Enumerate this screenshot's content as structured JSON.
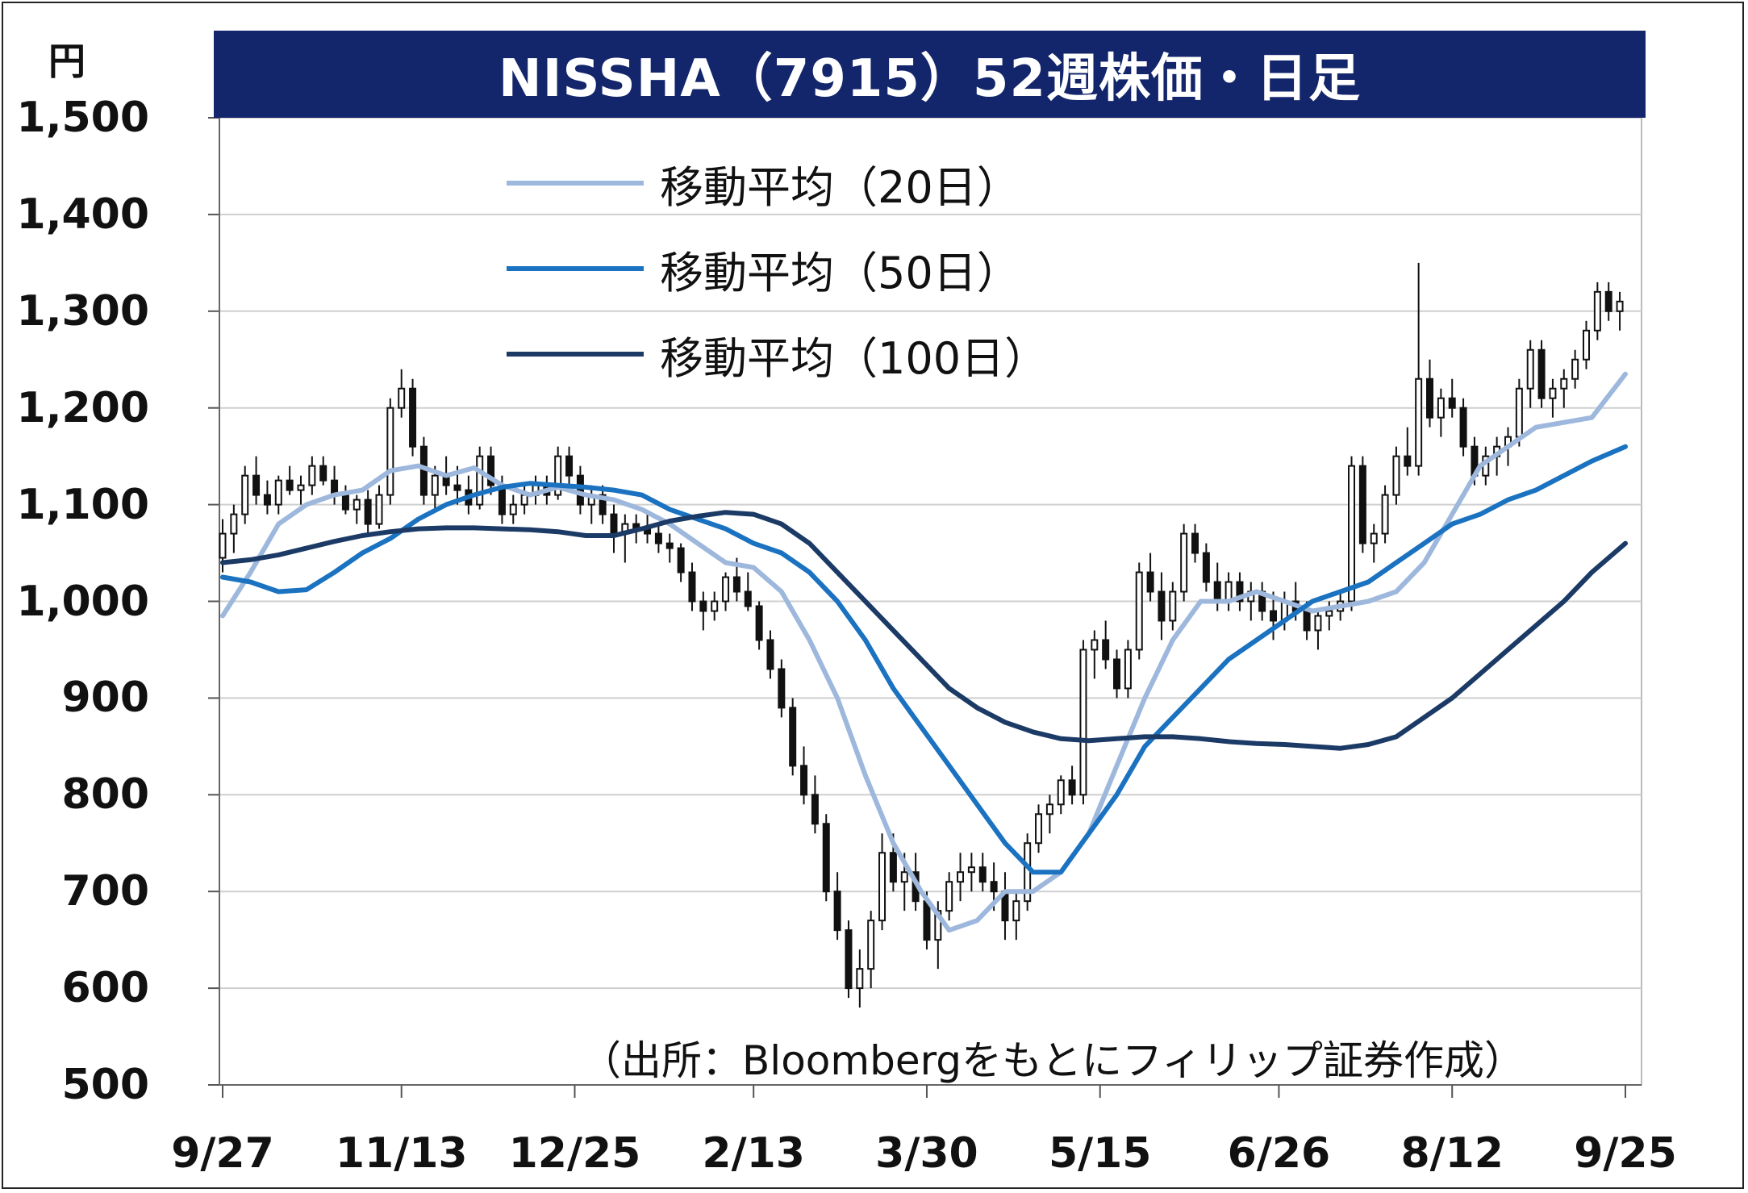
{
  "title": "NISSHA（7915）52週株価・日足",
  "unit_label": "円",
  "source_note": "（出所：Bloombergをもとにフィリップ証券作成）",
  "colors": {
    "title_bg": "#13256b",
    "ma20": "#9db8dc",
    "ma50": "#1a72c0",
    "ma100": "#1b3a66",
    "candle": "#111111",
    "grid": "#cfcfcf"
  },
  "legend": [
    {
      "key": "ma20",
      "label": "移動平均（20日）"
    },
    {
      "key": "ma50",
      "label": "移動平均（50日）"
    },
    {
      "key": "ma100",
      "label": "移動平均（100日）"
    }
  ],
  "chart_data": {
    "type": "candlestick",
    "title": "NISSHA（7915）52週株価・日足",
    "ylabel": "円",
    "ylim": [
      500,
      1500
    ],
    "yticks": [
      500,
      600,
      700,
      800,
      900,
      1000,
      1100,
      1200,
      1300,
      1400,
      1500
    ],
    "ytick_labels": [
      "500",
      "600",
      "700",
      "800",
      "900",
      "1,000",
      "1,100",
      "1,200",
      "1,300",
      "1,400",
      "1,500"
    ],
    "xticks": [
      {
        "label": "9/27",
        "index": 0
      },
      {
        "label": "11/13",
        "index": 32
      },
      {
        "label": "12/25",
        "index": 63
      },
      {
        "label": "2/13",
        "index": 95
      },
      {
        "label": "3/30",
        "index": 126
      },
      {
        "label": "5/15",
        "index": 157
      },
      {
        "label": "6/26",
        "index": 189
      },
      {
        "label": "8/12",
        "index": 220
      },
      {
        "label": "9/25",
        "index": 251
      }
    ],
    "x_count": 252,
    "grid": true,
    "legend_position": "top-left",
    "candles": [
      [
        0,
        1045,
        1085,
        1030,
        1070
      ],
      [
        2,
        1070,
        1100,
        1050,
        1090
      ],
      [
        4,
        1090,
        1140,
        1080,
        1130
      ],
      [
        6,
        1130,
        1150,
        1100,
        1110
      ],
      [
        8,
        1110,
        1125,
        1090,
        1100
      ],
      [
        10,
        1100,
        1130,
        1090,
        1125
      ],
      [
        12,
        1125,
        1140,
        1110,
        1115
      ],
      [
        14,
        1115,
        1130,
        1100,
        1120
      ],
      [
        16,
        1120,
        1150,
        1110,
        1140
      ],
      [
        18,
        1140,
        1150,
        1120,
        1125
      ],
      [
        20,
        1125,
        1140,
        1100,
        1110
      ],
      [
        22,
        1110,
        1120,
        1090,
        1095
      ],
      [
        24,
        1095,
        1110,
        1080,
        1105
      ],
      [
        26,
        1105,
        1115,
        1070,
        1080
      ],
      [
        28,
        1080,
        1120,
        1075,
        1110
      ],
      [
        30,
        1110,
        1210,
        1100,
        1200
      ],
      [
        32,
        1200,
        1240,
        1190,
        1220
      ],
      [
        34,
        1220,
        1230,
        1150,
        1160
      ],
      [
        36,
        1160,
        1170,
        1100,
        1110
      ],
      [
        38,
        1110,
        1140,
        1095,
        1130
      ],
      [
        40,
        1130,
        1150,
        1110,
        1120
      ],
      [
        42,
        1120,
        1140,
        1100,
        1115
      ],
      [
        44,
        1115,
        1130,
        1090,
        1100
      ],
      [
        46,
        1100,
        1160,
        1095,
        1150
      ],
      [
        48,
        1150,
        1160,
        1110,
        1120
      ],
      [
        50,
        1120,
        1130,
        1080,
        1090
      ],
      [
        52,
        1090,
        1110,
        1080,
        1100
      ],
      [
        54,
        1100,
        1120,
        1090,
        1110
      ],
      [
        56,
        1110,
        1130,
        1100,
        1120
      ],
      [
        58,
        1120,
        1130,
        1100,
        1110
      ],
      [
        60,
        1110,
        1160,
        1105,
        1150
      ],
      [
        62,
        1150,
        1160,
        1120,
        1130
      ],
      [
        64,
        1130,
        1140,
        1090,
        1100
      ],
      [
        66,
        1100,
        1120,
        1080,
        1110
      ],
      [
        68,
        1110,
        1120,
        1080,
        1090
      ],
      [
        70,
        1090,
        1100,
        1050,
        1070
      ],
      [
        72,
        1070,
        1090,
        1040,
        1080
      ],
      [
        74,
        1080,
        1090,
        1060,
        1075
      ],
      [
        76,
        1075,
        1090,
        1060,
        1070
      ],
      [
        78,
        1070,
        1080,
        1050,
        1060
      ],
      [
        80,
        1060,
        1070,
        1040,
        1055
      ],
      [
        82,
        1055,
        1060,
        1020,
        1030
      ],
      [
        84,
        1030,
        1040,
        990,
        1000
      ],
      [
        86,
        1000,
        1010,
        970,
        990
      ],
      [
        88,
        990,
        1010,
        980,
        1000
      ],
      [
        90,
        1000,
        1030,
        990,
        1025
      ],
      [
        92,
        1025,
        1045,
        1000,
        1010
      ],
      [
        94,
        1010,
        1030,
        990,
        995
      ],
      [
        96,
        995,
        1000,
        950,
        960
      ],
      [
        98,
        960,
        970,
        920,
        930
      ],
      [
        100,
        930,
        940,
        880,
        890
      ],
      [
        102,
        890,
        900,
        820,
        830
      ],
      [
        104,
        830,
        850,
        790,
        800
      ],
      [
        106,
        800,
        820,
        760,
        770
      ],
      [
        108,
        770,
        780,
        690,
        700
      ],
      [
        110,
        700,
        720,
        650,
        660
      ],
      [
        112,
        660,
        670,
        590,
        600
      ],
      [
        114,
        600,
        640,
        580,
        620
      ],
      [
        116,
        620,
        680,
        600,
        670
      ],
      [
        118,
        670,
        760,
        660,
        740
      ],
      [
        120,
        740,
        760,
        700,
        710
      ],
      [
        122,
        710,
        740,
        680,
        720
      ],
      [
        124,
        720,
        740,
        680,
        690
      ],
      [
        126,
        690,
        700,
        640,
        650
      ],
      [
        128,
        650,
        690,
        620,
        680
      ],
      [
        130,
        680,
        720,
        670,
        710
      ],
      [
        132,
        710,
        740,
        690,
        720
      ],
      [
        134,
        720,
        740,
        700,
        725
      ],
      [
        136,
        725,
        740,
        700,
        710
      ],
      [
        138,
        710,
        730,
        680,
        700
      ],
      [
        140,
        700,
        720,
        650,
        670
      ],
      [
        142,
        670,
        700,
        650,
        690
      ],
      [
        144,
        690,
        760,
        680,
        750
      ],
      [
        146,
        750,
        790,
        740,
        780
      ],
      [
        148,
        780,
        800,
        760,
        790
      ],
      [
        150,
        790,
        820,
        780,
        815
      ],
      [
        152,
        815,
        830,
        790,
        800
      ],
      [
        154,
        800,
        960,
        790,
        950
      ],
      [
        156,
        950,
        970,
        920,
        960
      ],
      [
        158,
        960,
        980,
        930,
        940
      ],
      [
        160,
        940,
        950,
        900,
        910
      ],
      [
        162,
        910,
        960,
        900,
        950
      ],
      [
        164,
        950,
        1040,
        940,
        1030
      ],
      [
        166,
        1030,
        1050,
        1000,
        1010
      ],
      [
        168,
        1010,
        1030,
        960,
        980
      ],
      [
        170,
        980,
        1020,
        970,
        1010
      ],
      [
        172,
        1010,
        1080,
        1000,
        1070
      ],
      [
        174,
        1070,
        1080,
        1040,
        1050
      ],
      [
        176,
        1050,
        1060,
        1010,
        1020
      ],
      [
        178,
        1020,
        1040,
        990,
        1000
      ],
      [
        180,
        1000,
        1030,
        990,
        1020
      ],
      [
        182,
        1020,
        1030,
        990,
        1000
      ],
      [
        184,
        1000,
        1020,
        980,
        1010
      ],
      [
        186,
        1010,
        1020,
        980,
        990
      ],
      [
        188,
        990,
        1010,
        960,
        980
      ],
      [
        190,
        980,
        1010,
        970,
        1000
      ],
      [
        192,
        1000,
        1020,
        980,
        990
      ],
      [
        194,
        990,
        1000,
        960,
        970
      ],
      [
        196,
        970,
        990,
        950,
        985
      ],
      [
        198,
        985,
        1000,
        970,
        990
      ],
      [
        200,
        990,
        1010,
        980,
        1000
      ],
      [
        202,
        1000,
        1150,
        990,
        1140
      ],
      [
        204,
        1140,
        1150,
        1050,
        1060
      ],
      [
        206,
        1060,
        1080,
        1040,
        1070
      ],
      [
        208,
        1070,
        1120,
        1060,
        1110
      ],
      [
        210,
        1110,
        1160,
        1100,
        1150
      ],
      [
        212,
        1150,
        1180,
        1130,
        1140
      ],
      [
        214,
        1140,
        1350,
        1130,
        1230
      ],
      [
        216,
        1230,
        1250,
        1180,
        1190
      ],
      [
        218,
        1190,
        1220,
        1170,
        1210
      ],
      [
        220,
        1210,
        1230,
        1190,
        1200
      ],
      [
        222,
        1200,
        1210,
        1150,
        1160
      ],
      [
        224,
        1160,
        1170,
        1120,
        1130
      ],
      [
        226,
        1130,
        1160,
        1120,
        1150
      ],
      [
        228,
        1150,
        1170,
        1130,
        1160
      ],
      [
        230,
        1160,
        1180,
        1140,
        1170
      ],
      [
        232,
        1170,
        1230,
        1160,
        1220
      ],
      [
        234,
        1220,
        1270,
        1200,
        1260
      ],
      [
        236,
        1260,
        1270,
        1200,
        1210
      ],
      [
        238,
        1210,
        1230,
        1190,
        1220
      ],
      [
        240,
        1220,
        1240,
        1200,
        1230
      ],
      [
        242,
        1230,
        1260,
        1220,
        1250
      ],
      [
        244,
        1250,
        1290,
        1240,
        1280
      ],
      [
        246,
        1280,
        1330,
        1270,
        1320
      ],
      [
        248,
        1320,
        1330,
        1290,
        1300
      ],
      [
        250,
        1300,
        1320,
        1280,
        1310
      ]
    ],
    "series": [
      {
        "name": "移動平均（20日）",
        "key": "ma20",
        "x": [
          0,
          5,
          10,
          15,
          20,
          25,
          30,
          35,
          40,
          45,
          50,
          55,
          60,
          65,
          70,
          75,
          80,
          85,
          90,
          95,
          100,
          105,
          110,
          115,
          120,
          125,
          130,
          135,
          140,
          145,
          150,
          155,
          160,
          165,
          170,
          175,
          180,
          185,
          190,
          195,
          200,
          205,
          210,
          215,
          220,
          225,
          230,
          235,
          240,
          245,
          251
        ],
        "y": [
          985,
          1030,
          1080,
          1100,
          1110,
          1115,
          1135,
          1140,
          1130,
          1138,
          1120,
          1110,
          1118,
          1110,
          1105,
          1095,
          1080,
          1060,
          1040,
          1035,
          1010,
          960,
          900,
          820,
          750,
          700,
          660,
          670,
          700,
          700,
          720,
          760,
          830,
          900,
          960,
          1000,
          1000,
          1010,
          1000,
          990,
          995,
          1000,
          1010,
          1040,
          1090,
          1140,
          1160,
          1180,
          1185,
          1190,
          1235
        ]
      },
      {
        "name": "移動平均（50日）",
        "key": "ma50",
        "x": [
          0,
          5,
          10,
          15,
          20,
          25,
          30,
          35,
          40,
          45,
          50,
          55,
          60,
          65,
          70,
          75,
          80,
          85,
          90,
          95,
          100,
          105,
          110,
          115,
          120,
          125,
          130,
          135,
          140,
          145,
          150,
          155,
          160,
          165,
          170,
          175,
          180,
          185,
          190,
          195,
          200,
          205,
          210,
          215,
          220,
          225,
          230,
          235,
          240,
          245,
          251
        ],
        "y": [
          1025,
          1020,
          1010,
          1012,
          1030,
          1050,
          1065,
          1085,
          1100,
          1110,
          1118,
          1122,
          1120,
          1118,
          1115,
          1110,
          1095,
          1085,
          1075,
          1060,
          1050,
          1030,
          1000,
          960,
          910,
          870,
          830,
          790,
          750,
          720,
          720,
          760,
          800,
          850,
          880,
          910,
          940,
          960,
          980,
          1000,
          1010,
          1020,
          1040,
          1060,
          1080,
          1090,
          1105,
          1115,
          1130,
          1145,
          1160
        ]
      },
      {
        "name": "移動平均（100日）",
        "key": "ma100",
        "x": [
          0,
          5,
          10,
          15,
          20,
          25,
          30,
          35,
          40,
          45,
          50,
          55,
          60,
          65,
          70,
          75,
          80,
          85,
          90,
          95,
          100,
          105,
          110,
          115,
          120,
          125,
          130,
          135,
          140,
          145,
          150,
          155,
          160,
          165,
          170,
          175,
          180,
          185,
          190,
          195,
          200,
          205,
          210,
          215,
          220,
          225,
          230,
          235,
          240,
          245,
          251
        ],
        "y": [
          1040,
          1043,
          1048,
          1055,
          1062,
          1068,
          1072,
          1075,
          1076,
          1076,
          1075,
          1074,
          1072,
          1068,
          1068,
          1075,
          1083,
          1088,
          1092,
          1090,
          1080,
          1060,
          1030,
          1000,
          970,
          940,
          910,
          890,
          875,
          865,
          858,
          856,
          858,
          860,
          860,
          858,
          855,
          853,
          852,
          850,
          848,
          852,
          860,
          880,
          900,
          925,
          950,
          975,
          1000,
          1030,
          1060
        ]
      }
    ]
  }
}
